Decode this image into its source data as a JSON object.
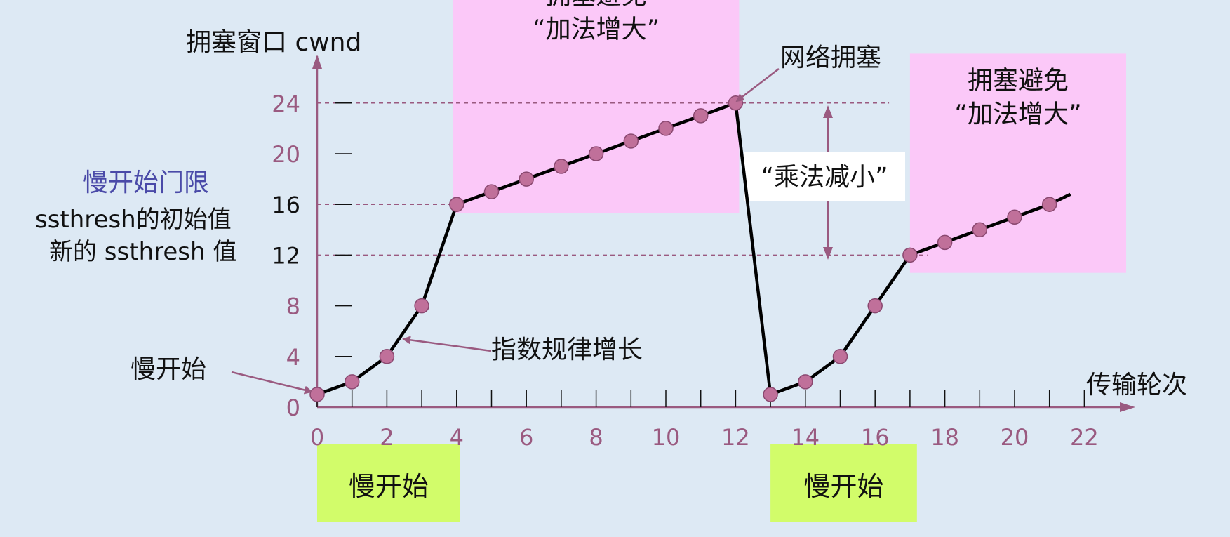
{
  "chart_data": {
    "type": "line",
    "ylabel": "拥塞窗口 cwnd",
    "xlabel": "传输轮次",
    "xlim": [
      0,
      22
    ],
    "ylim": [
      0,
      24
    ],
    "x_ticks": [
      0,
      2,
      4,
      6,
      8,
      10,
      12,
      14,
      16,
      18,
      20,
      22
    ],
    "y_ticks": [
      0,
      4,
      8,
      12,
      16,
      20,
      24
    ],
    "grid": false,
    "series": [
      {
        "points": [
          [
            0,
            1
          ],
          [
            1,
            2
          ],
          [
            2,
            4
          ],
          [
            3,
            8
          ],
          [
            4,
            16
          ],
          [
            5,
            17
          ],
          [
            6,
            18
          ],
          [
            7,
            19
          ],
          [
            8,
            20
          ],
          [
            9,
            21
          ],
          [
            10,
            22
          ],
          [
            11,
            23
          ],
          [
            12,
            24
          ],
          [
            13,
            1
          ],
          [
            14,
            2
          ],
          [
            15,
            4
          ],
          [
            16,
            8
          ],
          [
            17,
            12
          ],
          [
            18,
            13
          ],
          [
            19,
            14
          ],
          [
            20,
            15
          ],
          [
            21,
            16
          ]
        ],
        "line_end": [
          21.6,
          16.8
        ]
      }
    ],
    "reference_lines": [
      {
        "y": 24,
        "x_from": 0,
        "x_to": 16.4
      },
      {
        "y": 16,
        "x_from": 0,
        "x_to": 4
      },
      {
        "y": 12,
        "x_from": 0,
        "x_to": 17.5
      }
    ],
    "regions": [
      {
        "kind": "pink",
        "x_from": 3.9,
        "x_to": 12.1,
        "y_from": 15.3,
        "y_to": 34.6,
        "label_lines": [
          "拥塞避免",
          "“加法增大”"
        ]
      },
      {
        "kind": "pink",
        "x_from": 17,
        "x_to": 23.2,
        "y_from": 10.6,
        "y_to": 27.9,
        "label_lines": [
          "拥塞避免",
          "“加法增大”"
        ]
      },
      {
        "kind": "green",
        "x_from": 0,
        "x_to": 4.1,
        "label": "慢开始"
      },
      {
        "kind": "green",
        "x_from": 13,
        "x_to": 17.2,
        "label": "慢开始"
      }
    ],
    "annotations": {
      "network_congestion": "网络拥塞",
      "multiplicative_decrease": "“乘法减小”",
      "exponential_growth": "指数规律增长",
      "slow_start": "慢开始",
      "ssthresh_title": "慢开始门限",
      "ssthresh_initial": "ssthresh的初始值",
      "ssthresh_new": "新的 ssthresh 值"
    },
    "colors": {
      "background": "#dde9f4",
      "axis": "#9a5a80",
      "tick_label": "#9a5a80",
      "line": "#000000",
      "marker": "#c0709a",
      "pink_region": "#fbc8f8",
      "green_region": "#d2fc6a",
      "threshold_title": "#4a4aa8"
    }
  }
}
